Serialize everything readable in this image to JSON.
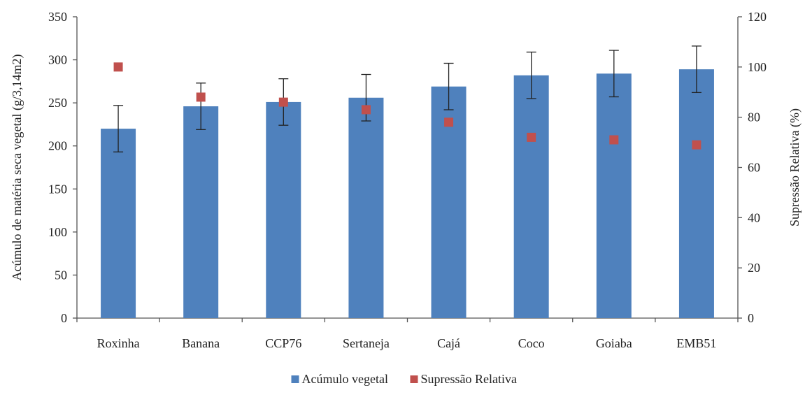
{
  "chart_data": {
    "type": "bar",
    "title": "",
    "categories": [
      "Roxinha",
      "Banana",
      "CCP76",
      "Sertaneja",
      "Cajá",
      "Coco",
      "Goiaba",
      "EMB51"
    ],
    "ylabel": "Acúmulo de matéria seca vegetal (g/3,14m2)",
    "y2label": "Supressão Relativa (%)",
    "ylim": [
      0,
      350
    ],
    "y2lim": [
      0,
      120
    ],
    "yticks": [
      "0",
      "50",
      "100",
      "150",
      "200",
      "250",
      "300",
      "350"
    ],
    "y2ticks": [
      "0",
      "20",
      "40",
      "60",
      "80",
      "100",
      "120"
    ],
    "series": [
      {
        "name": "Acúmulo vegetal",
        "type": "bar",
        "axis": "left",
        "color": "#4F81BD",
        "values": [
          220,
          246,
          251,
          256,
          269,
          282,
          284,
          289
        ],
        "error": [
          27,
          27,
          27,
          27,
          27,
          27,
          27,
          27
        ]
      },
      {
        "name": "Supressão Relativa",
        "type": "scatter",
        "axis": "right",
        "color": "#C0504D",
        "values": [
          100,
          88,
          86,
          83,
          78,
          72,
          71,
          69
        ]
      }
    ],
    "legend_position": "bottom",
    "grid": false
  }
}
